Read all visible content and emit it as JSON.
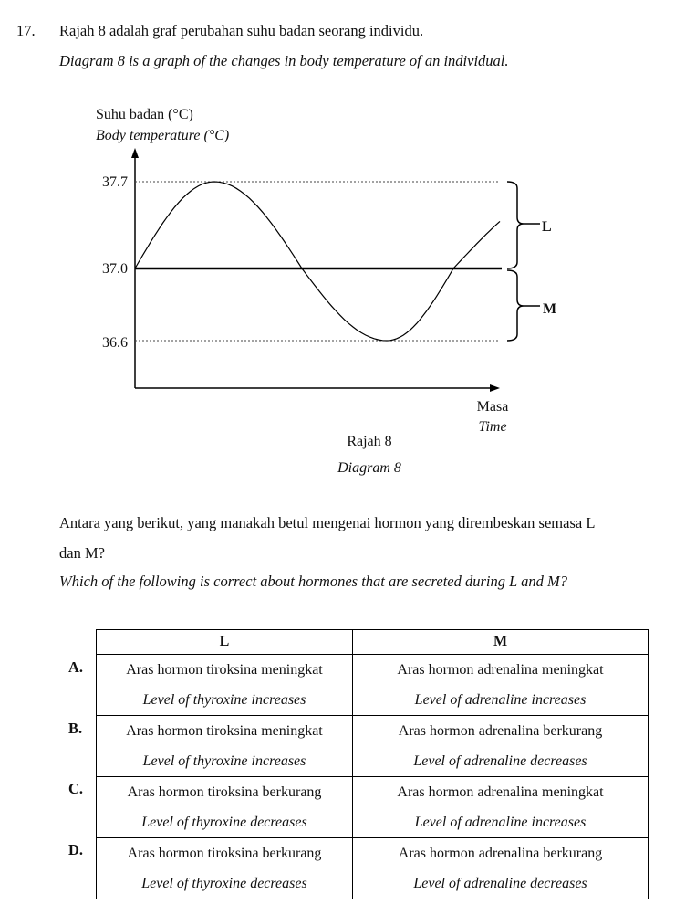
{
  "question": {
    "number": "17.",
    "stem_ms": "Rajah 8 adalah graf perubahan suhu badan seorang individu.",
    "stem_en": "Diagram 8 is a graph of the changes in body temperature of an individual.",
    "prompt_ms_line1": "Antara yang berikut, yang manakah betul mengenai hormon yang dirembeskan semasa L",
    "prompt_ms_line2": "dan M?",
    "prompt_en": "Which of the following is correct about hormones that are secreted during L and M?"
  },
  "chart_data": {
    "type": "line",
    "y_axis_label_ms": "Suhu badan (°C)",
    "y_axis_label_en": "Body temperature (°C)",
    "x_axis_label_ms": "Masa",
    "x_axis_label_en": "Time",
    "y_ticks": [
      "37.7",
      "37.0",
      "36.6"
    ],
    "baseline_value": 37.0,
    "max_value": 37.7,
    "min_value": 36.6,
    "curve": "sinusoidal body temperature oscillating between 36.6 and 37.7 around 37.0",
    "series": [
      {
        "values": [
          37.0,
          37.7,
          37.0,
          36.6,
          37.0,
          37.38
        ]
      }
    ],
    "region_labels": [
      "L",
      "M"
    ],
    "caption_ms": "Rajah 8",
    "caption_en": "Diagram 8"
  },
  "table": {
    "header_l": "L",
    "header_m": "M",
    "rows": [
      {
        "option": "A.",
        "l_ms": "Aras hormon tiroksina meningkat",
        "l_en": "Level of thyroxine increases",
        "m_ms": "Aras hormon adrenalina meningkat",
        "m_en": "Level of adrenaline increases"
      },
      {
        "option": "B.",
        "l_ms": "Aras hormon tiroksina meningkat",
        "l_en": "Level of thyroxine increases",
        "m_ms": "Aras hormon adrenalina berkurang",
        "m_en": "Level of adrenaline decreases"
      },
      {
        "option": "C.",
        "l_ms": "Aras hormon tiroksina berkurang",
        "l_en": "Level of thyroxine decreases",
        "m_ms": "Aras hormon adrenalina meningkat",
        "m_en": "Level of adrenaline increases"
      },
      {
        "option": "D.",
        "l_ms": "Aras hormon tiroksina berkurang",
        "l_en": "Level of thyroxine decreases",
        "m_ms": "Aras hormon adrenalina berkurang",
        "m_en": "Level of adrenaline decreases"
      }
    ]
  }
}
